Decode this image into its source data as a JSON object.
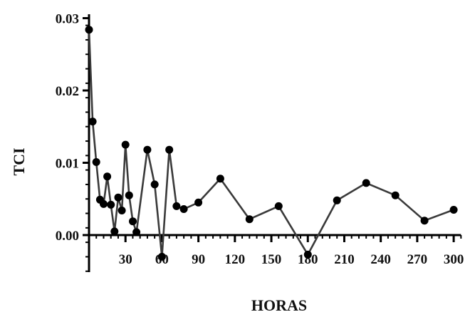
{
  "chart_data": {
    "type": "line",
    "title": "",
    "xlabel": "HORAS",
    "ylabel": "TCI",
    "xlim": [
      0,
      306
    ],
    "ylim": [
      -0.005,
      0.03
    ],
    "x_ticks": [
      30,
      60,
      90,
      120,
      150,
      180,
      210,
      240,
      270,
      300
    ],
    "x_tick_labels": [
      "30",
      "60",
      "90",
      "120",
      "150",
      "180",
      "210",
      "240",
      "270",
      "300"
    ],
    "y_ticks": [
      0.0,
      0.01,
      0.02,
      0.03
    ],
    "y_tick_labels": [
      "0.00",
      "0.01",
      "0.02",
      "0.03"
    ],
    "grid": false,
    "legend": "none",
    "colors": {
      "line": "#3a3a3a",
      "marker": "#000000",
      "axis": "#000000"
    },
    "series": [
      {
        "x": [
          0,
          3,
          6,
          9,
          12,
          15,
          18,
          21,
          24,
          27,
          30,
          33,
          36,
          39,
          48,
          54,
          60,
          66,
          72,
          78,
          90,
          108,
          132,
          156,
          180,
          204,
          228,
          252,
          276,
          300
        ],
        "y": [
          0.0284,
          0.0157,
          0.0101,
          0.0049,
          0.0043,
          0.0081,
          0.0042,
          0.0005,
          0.0052,
          0.0034,
          0.0125,
          0.0055,
          0.0019,
          0.0004,
          0.0118,
          0.007,
          -0.003,
          0.0118,
          0.004,
          0.0036,
          0.0045,
          0.0078,
          0.0022,
          0.004,
          -0.0027,
          0.0048,
          0.0072,
          0.0055,
          0.002,
          0.0035
        ]
      }
    ]
  }
}
